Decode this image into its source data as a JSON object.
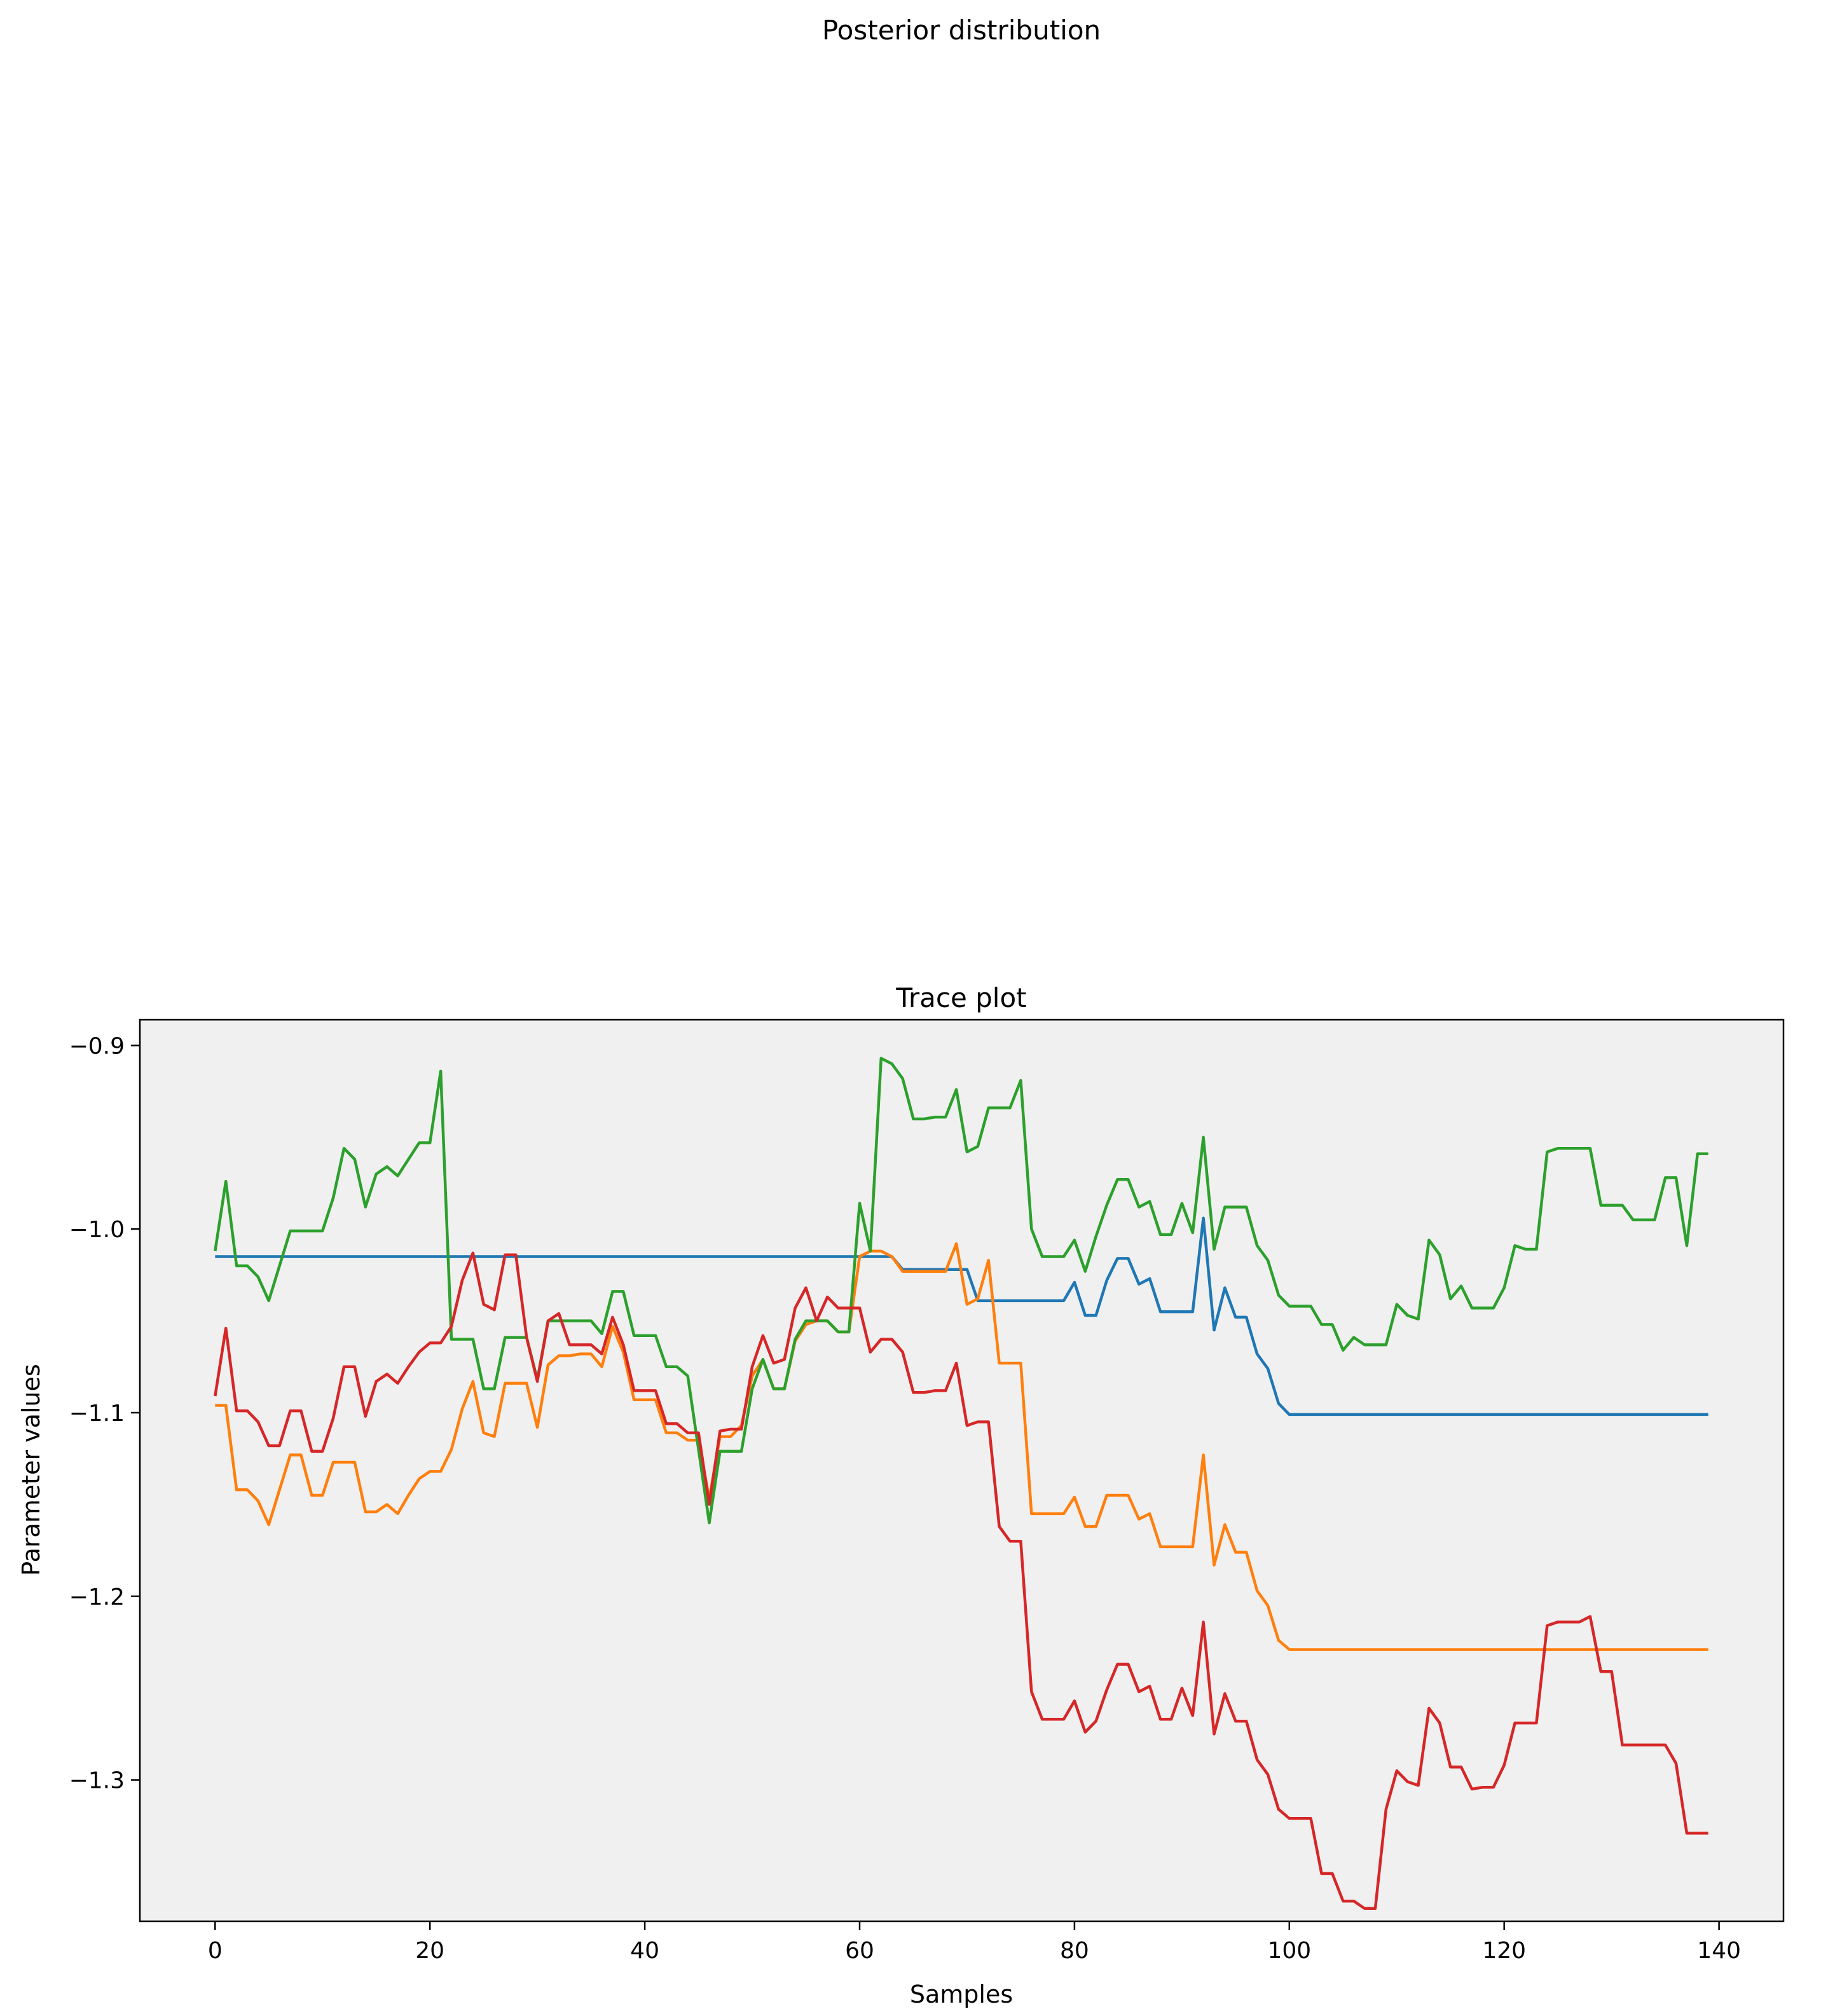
{
  "figure": {
    "suptitle": "Posterior distribution"
  },
  "chart_data": {
    "type": "line",
    "title": "Trace plot",
    "xlabel": "Samples",
    "ylabel": "Parameter values",
    "xlim": [
      -7,
      146
    ],
    "ylim": [
      -1.377,
      -0.886
    ],
    "xticks": [
      0,
      20,
      40,
      60,
      80,
      100,
      120,
      140
    ],
    "yticks": [
      -0.9,
      -1.0,
      -1.1,
      -1.2,
      -1.3
    ],
    "ytick_labels": [
      "−0.9",
      "−1.0",
      "−1.1",
      "−1.2",
      "−1.3"
    ],
    "grid": false,
    "legend": "none",
    "background": "#f0f0f0",
    "series": [
      {
        "color": "#1f77b4",
        "values": [
          -1.015,
          -1.015,
          -1.015,
          -1.015,
          -1.015,
          -1.015,
          -1.015,
          -1.015,
          -1.015,
          -1.015,
          -1.015,
          -1.015,
          -1.015,
          -1.015,
          -1.015,
          -1.015,
          -1.015,
          -1.015,
          -1.015,
          -1.015,
          -1.015,
          -1.015,
          -1.015,
          -1.015,
          -1.015,
          -1.015,
          -1.015,
          -1.015,
          -1.015,
          -1.015,
          -1.015,
          -1.015,
          -1.015,
          -1.015,
          -1.015,
          -1.015,
          -1.015,
          -1.015,
          -1.015,
          -1.015,
          -1.015,
          -1.015,
          -1.015,
          -1.015,
          -1.015,
          -1.015,
          -1.015,
          -1.015,
          -1.015,
          -1.015,
          -1.015,
          -1.015,
          -1.015,
          -1.015,
          -1.015,
          -1.015,
          -1.015,
          -1.015,
          -1.015,
          -1.015,
          -1.015,
          -1.015,
          -1.015,
          -1.015,
          -1.022,
          -1.022,
          -1.022,
          -1.022,
          -1.022,
          -1.022,
          -1.022,
          -1.039,
          -1.039,
          -1.039,
          -1.039,
          -1.039,
          -1.039,
          -1.039,
          -1.039,
          -1.039,
          -1.029,
          -1.047,
          -1.047,
          -1.028,
          -1.016,
          -1.016,
          -1.03,
          -1.027,
          -1.045,
          -1.045,
          -1.045,
          -1.045,
          -0.994,
          -1.055,
          -1.032,
          -1.048,
          -1.048,
          -1.068,
          -1.076,
          -1.095,
          -1.101,
          -1.101,
          -1.101,
          -1.101,
          -1.101,
          -1.101,
          -1.101,
          -1.101,
          -1.101,
          -1.101,
          -1.101,
          -1.101,
          -1.101,
          -1.101,
          -1.101,
          -1.101,
          -1.101,
          -1.101,
          -1.101,
          -1.101,
          -1.101,
          -1.101,
          -1.101,
          -1.101,
          -1.101,
          -1.101,
          -1.101,
          -1.101,
          -1.101,
          -1.101,
          -1.101,
          -1.101,
          -1.101,
          -1.101,
          -1.101,
          -1.101,
          -1.101,
          -1.101,
          -1.101,
          -1.101
        ]
      },
      {
        "color": "#ff7f0e",
        "values": [
          -1.096,
          -1.096,
          -1.142,
          -1.142,
          -1.148,
          -1.161,
          -1.142,
          -1.123,
          -1.123,
          -1.145,
          -1.145,
          -1.127,
          -1.127,
          -1.127,
          -1.154,
          -1.154,
          -1.15,
          -1.155,
          -1.145,
          -1.136,
          -1.132,
          -1.132,
          -1.12,
          -1.098,
          -1.083,
          -1.111,
          -1.113,
          -1.084,
          -1.084,
          -1.084,
          -1.108,
          -1.074,
          -1.069,
          -1.069,
          -1.068,
          -1.068,
          -1.075,
          -1.053,
          -1.067,
          -1.093,
          -1.093,
          -1.093,
          -1.111,
          -1.111,
          -1.115,
          -1.115,
          -1.147,
          -1.113,
          -1.113,
          -1.107,
          -1.08,
          -1.071,
          -1.087,
          -1.087,
          -1.061,
          -1.052,
          -1.05,
          -1.05,
          -1.056,
          -1.056,
          -1.015,
          -1.012,
          -1.012,
          -1.015,
          -1.023,
          -1.023,
          -1.023,
          -1.023,
          -1.023,
          -1.008,
          -1.041,
          -1.038,
          -1.017,
          -1.073,
          -1.073,
          -1.073,
          -1.155,
          -1.155,
          -1.155,
          -1.155,
          -1.146,
          -1.162,
          -1.162,
          -1.145,
          -1.145,
          -1.145,
          -1.158,
          -1.155,
          -1.173,
          -1.173,
          -1.173,
          -1.173,
          -1.123,
          -1.183,
          -1.161,
          -1.176,
          -1.176,
          -1.197,
          -1.205,
          -1.224,
          -1.229,
          -1.229,
          -1.229,
          -1.229,
          -1.229,
          -1.229,
          -1.229,
          -1.229,
          -1.229,
          -1.229,
          -1.229,
          -1.229,
          -1.229,
          -1.229,
          -1.229,
          -1.229,
          -1.229,
          -1.229,
          -1.229,
          -1.229,
          -1.229,
          -1.229,
          -1.229,
          -1.229,
          -1.229,
          -1.229,
          -1.229,
          -1.229,
          -1.229,
          -1.229,
          -1.229,
          -1.229,
          -1.229,
          -1.229,
          -1.229,
          -1.229,
          -1.229,
          -1.229,
          -1.229,
          -1.229
        ]
      },
      {
        "color": "#2ca02c",
        "values": [
          -1.012,
          -0.974,
          -1.02,
          -1.02,
          -1.026,
          -1.039,
          -1.02,
          -1.001,
          -1.001,
          -1.001,
          -1.001,
          -0.983,
          -0.956,
          -0.962,
          -0.988,
          -0.97,
          -0.966,
          -0.971,
          -0.962,
          -0.953,
          -0.953,
          -0.914,
          -1.06,
          -1.06,
          -1.06,
          -1.087,
          -1.087,
          -1.059,
          -1.059,
          -1.059,
          -1.082,
          -1.05,
          -1.05,
          -1.05,
          -1.05,
          -1.05,
          -1.057,
          -1.034,
          -1.034,
          -1.058,
          -1.058,
          -1.058,
          -1.075,
          -1.075,
          -1.08,
          -1.12,
          -1.16,
          -1.121,
          -1.121,
          -1.121,
          -1.087,
          -1.071,
          -1.087,
          -1.087,
          -1.06,
          -1.05,
          -1.05,
          -1.05,
          -1.056,
          -1.056,
          -0.986,
          -1.012,
          -0.907,
          -0.91,
          -0.918,
          -0.94,
          -0.94,
          -0.939,
          -0.939,
          -0.924,
          -0.958,
          -0.955,
          -0.934,
          -0.934,
          -0.934,
          -0.919,
          -1.0,
          -1.015,
          -1.015,
          -1.015,
          -1.006,
          -1.023,
          -1.004,
          -0.987,
          -0.973,
          -0.973,
          -0.988,
          -0.985,
          -1.003,
          -1.003,
          -0.986,
          -1.002,
          -0.95,
          -1.011,
          -0.988,
          -0.988,
          -0.988,
          -1.009,
          -1.017,
          -1.036,
          -1.042,
          -1.042,
          -1.042,
          -1.052,
          -1.052,
          -1.066,
          -1.059,
          -1.063,
          -1.063,
          -1.063,
          -1.041,
          -1.047,
          -1.049,
          -1.006,
          -1.014,
          -1.038,
          -1.031,
          -1.043,
          -1.043,
          -1.043,
          -1.032,
          -1.009,
          -1.011,
          -1.011,
          -0.958,
          -0.956,
          -0.956,
          -0.956,
          -0.956,
          -0.987,
          -0.987,
          -0.987,
          -0.995,
          -0.995,
          -0.995,
          -0.972,
          -0.972,
          -1.009,
          -0.959,
          -0.959
        ]
      },
      {
        "color": "#d62728",
        "values": [
          -1.091,
          -1.054,
          -1.099,
          -1.099,
          -1.105,
          -1.118,
          -1.118,
          -1.099,
          -1.099,
          -1.121,
          -1.121,
          -1.103,
          -1.075,
          -1.075,
          -1.102,
          -1.083,
          -1.079,
          -1.084,
          -1.075,
          -1.067,
          -1.062,
          -1.062,
          -1.053,
          -1.028,
          -1.013,
          -1.041,
          -1.044,
          -1.014,
          -1.014,
          -1.059,
          -1.083,
          -1.05,
          -1.046,
          -1.063,
          -1.063,
          -1.063,
          -1.068,
          -1.048,
          -1.063,
          -1.088,
          -1.088,
          -1.088,
          -1.106,
          -1.106,
          -1.111,
          -1.111,
          -1.15,
          -1.11,
          -1.109,
          -1.109,
          -1.075,
          -1.058,
          -1.073,
          -1.071,
          -1.043,
          -1.032,
          -1.05,
          -1.037,
          -1.043,
          -1.043,
          -1.043,
          -1.067,
          -1.06,
          -1.06,
          -1.067,
          -1.089,
          -1.089,
          -1.088,
          -1.088,
          -1.073,
          -1.107,
          -1.105,
          -1.105,
          -1.162,
          -1.17,
          -1.17,
          -1.252,
          -1.267,
          -1.267,
          -1.267,
          -1.257,
          -1.274,
          -1.268,
          -1.251,
          -1.237,
          -1.237,
          -1.252,
          -1.249,
          -1.267,
          -1.267,
          -1.25,
          -1.265,
          -1.214,
          -1.275,
          -1.253,
          -1.268,
          -1.268,
          -1.289,
          -1.297,
          -1.316,
          -1.321,
          -1.321,
          -1.321,
          -1.351,
          -1.351,
          -1.366,
          -1.366,
          -1.37,
          -1.37,
          -1.316,
          -1.295,
          -1.301,
          -1.303,
          -1.261,
          -1.269,
          -1.293,
          -1.293,
          -1.305,
          -1.304,
          -1.304,
          -1.292,
          -1.269,
          -1.269,
          -1.269,
          -1.216,
          -1.214,
          -1.214,
          -1.214,
          -1.211,
          -1.241,
          -1.241,
          -1.281,
          -1.281,
          -1.281,
          -1.281,
          -1.281,
          -1.291,
          -1.329,
          -1.329,
          -1.329
        ]
      }
    ]
  }
}
